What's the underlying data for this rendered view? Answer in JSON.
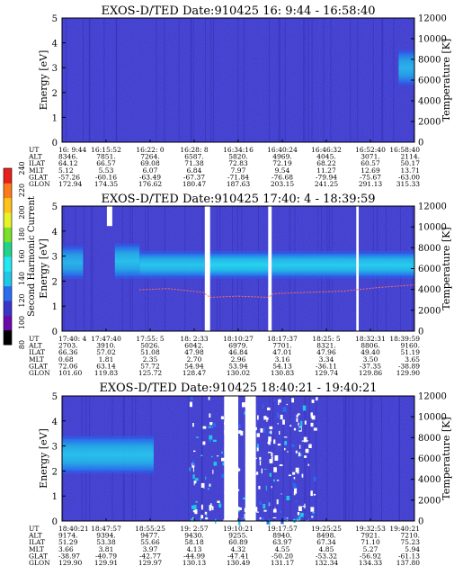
{
  "colorbar": {
    "label": "Second Harmonic Current",
    "ticks": [
      "80",
      "100",
      "120",
      "140",
      "160",
      "180",
      "200",
      "220",
      "240"
    ]
  },
  "chart_data": [
    {
      "type": "heatmap",
      "title": "EXOS-D/TED   Date:910425  16: 9:44 - 16:58:40",
      "ylabel": "Energy [eV]",
      "y2label": "Temperature [K]",
      "ylim": [
        0,
        5
      ],
      "y2lim": [
        0,
        12000
      ],
      "yticks": [
        "0",
        "1",
        "2",
        "3",
        "4",
        "5"
      ],
      "y2ticks": [
        "0",
        "2000",
        "4000",
        "6000",
        "8000",
        "10000",
        "12000"
      ],
      "features": [
        {
          "kind": "band",
          "x_range": [
            0.955,
            1.0
          ],
          "y_range": [
            2.4,
            3.6
          ],
          "level": 150
        }
      ],
      "table": {
        "labels": [
          "UT",
          "ALT",
          "ILAT",
          "MLT",
          "GLAT",
          "GLON"
        ],
        "columns": [
          [
            "16: 9:44",
            "8346.",
            "64.12",
            "5.12",
            "-57.26",
            "172.94"
          ],
          [
            "16:15:52",
            "7851.",
            "66.57",
            "5.53",
            "-60.16",
            "174.35"
          ],
          [
            "16:22: 0",
            "7264.",
            "69.08",
            "6.07",
            "-63.49",
            "176.62"
          ],
          [
            "16:28: 8",
            "6587.",
            "71.38",
            "6.84",
            "-67.37",
            "180.47"
          ],
          [
            "16:34:16",
            "5820.",
            "72.83",
            "7.97",
            "-71.84",
            "187.63"
          ],
          [
            "16:40:24",
            "4969.",
            "72.19",
            "9.54",
            "-76.68",
            "203.15"
          ],
          [
            "16:46:32",
            "4045.",
            "68.22",
            "11.27",
            "-79.94",
            "241.25"
          ],
          [
            "16:52:40",
            "3071.",
            "60.57",
            "12.69",
            "-75.67",
            "291.13"
          ],
          [
            "16:58:40",
            "2114.",
            "50.17",
            "13.71",
            "-63.00",
            "315.33"
          ]
        ]
      }
    },
    {
      "type": "heatmap",
      "title": "EXOS-D/TED   Date:910425  17:40: 4 - 18:39:59",
      "ylabel": "Energy [eV]",
      "y2label": "Temperature [K]",
      "ylim": [
        0,
        5
      ],
      "y2lim": [
        0,
        12000
      ],
      "yticks": [
        "0",
        "1",
        "2",
        "3",
        "4",
        "5"
      ],
      "y2ticks": [
        "0",
        "2000",
        "4000",
        "6000",
        "8000",
        "10000",
        "12000"
      ],
      "features": [
        {
          "kind": "band",
          "x_range": [
            0.0,
            0.06
          ],
          "y_range": [
            2.2,
            3.3
          ],
          "level": 150
        },
        {
          "kind": "band",
          "x_range": [
            0.15,
            0.22
          ],
          "y_range": [
            2.2,
            3.4
          ],
          "level": 160
        },
        {
          "kind": "band",
          "x_range": [
            0.22,
            0.405
          ],
          "y_range": [
            2.2,
            3.1
          ],
          "level": 165
        },
        {
          "kind": "band",
          "x_range": [
            0.42,
            0.585
          ],
          "y_range": [
            2.2,
            3.1
          ],
          "level": 175
        },
        {
          "kind": "band",
          "x_range": [
            0.595,
            1.0
          ],
          "y_range": [
            2.2,
            3.1
          ],
          "level": 170
        },
        {
          "kind": "gap",
          "x_range": [
            0.405,
            0.42
          ]
        },
        {
          "kind": "gap",
          "x_range": [
            0.585,
            0.595
          ]
        },
        {
          "kind": "gap",
          "x_range": [
            0.835,
            0.842
          ]
        },
        {
          "kind": "spike",
          "x": 0.135,
          "y_range": [
            4.2,
            5.0
          ],
          "color": "white"
        }
      ],
      "temperature_trace": [
        [
          0.22,
          1.65
        ],
        [
          0.3,
          1.7
        ],
        [
          0.4,
          1.55
        ],
        [
          0.42,
          1.35
        ],
        [
          0.5,
          1.4
        ],
        [
          0.585,
          1.35
        ],
        [
          0.6,
          1.5
        ],
        [
          0.7,
          1.55
        ],
        [
          0.8,
          1.6
        ],
        [
          0.9,
          1.75
        ],
        [
          1.0,
          1.85
        ]
      ],
      "table": {
        "labels": [
          "UT",
          "ALT",
          "ILAT",
          "MLT",
          "GLAT",
          "GLON"
        ],
        "columns": [
          [
            "17:40: 4",
            "2703.",
            "66.36",
            "0.68",
            "72.06",
            "101.60"
          ],
          [
            "17:47:40",
            "3910.",
            "57.02",
            "1.81",
            "63.14",
            "119.83"
          ],
          [
            "17:55: 5",
            "5026.",
            "51.08",
            "2.35",
            "57.72",
            "125.72"
          ],
          [
            "18: 2:33",
            "6042.",
            "47.98",
            "2.70",
            "54.94",
            "128.47"
          ],
          [
            "18:10:27",
            "6979.",
            "46.84",
            "2.96",
            "53.94",
            "130.02"
          ],
          [
            "18:17:37",
            "7701.",
            "47.01",
            "3.16",
            "54.13",
            "130.83"
          ],
          [
            "18:25: 5",
            "8321.",
            "47.96",
            "3.34",
            "-36.11",
            "129.74"
          ],
          [
            "18:32:31",
            "8806.",
            "49.40",
            "3.50",
            "-37.35",
            "129.86"
          ],
          [
            "18:39:59",
            "9160.",
            "51.19",
            "3.65",
            "-38.89",
            "129.90"
          ]
        ]
      }
    },
    {
      "type": "heatmap",
      "title": "EXOS-D/TED   Date:910425  18:40:21 - 19:40:21",
      "ylabel": "Energy [eV]",
      "y2label": "Temperature [K]",
      "ylim": [
        0,
        5
      ],
      "y2lim": [
        0,
        12000
      ],
      "yticks": [
        "0",
        "1",
        "2",
        "3",
        "4",
        "5"
      ],
      "y2ticks": [
        "0",
        "2000",
        "4000",
        "6000",
        "8000",
        "10000",
        "12000"
      ],
      "features": [
        {
          "kind": "band",
          "x_range": [
            0.0,
            0.26
          ],
          "y_range": [
            2.0,
            3.3
          ],
          "level": 160
        },
        {
          "kind": "gap",
          "x_range": [
            0.46,
            0.5
          ]
        },
        {
          "kind": "gap",
          "x_range": [
            0.52,
            0.55
          ]
        },
        {
          "kind": "noise",
          "x_range": [
            0.36,
            0.72
          ],
          "y_range": [
            0.0,
            5.0
          ]
        }
      ],
      "table": {
        "labels": [
          "UT",
          "ALT",
          "ILAT",
          "MLT",
          "GLAT",
          "GLON"
        ],
        "columns": [
          [
            "18:40:21",
            "9174.",
            "51.29",
            "3.66",
            "-38.97",
            "129.90"
          ],
          [
            "18:47:57",
            "9394.",
            "53.38",
            "3.81",
            "-40.79",
            "129.91"
          ],
          [
            "18:55:25",
            "9477.",
            "55.66",
            "3.97",
            "-42.77",
            "129.97"
          ],
          [
            "19: 2:57",
            "9430.",
            "58.18",
            "4.13",
            "-44.99",
            "130.13"
          ],
          [
            "19:10:21",
            "9255.",
            "60.89",
            "4.32",
            "-47.41",
            "130.49"
          ],
          [
            "19:17:57",
            "8940.",
            "63.97",
            "4.55",
            "-50.20",
            "131.17"
          ],
          [
            "19:25:25",
            "8498.",
            "67.34",
            "4.85",
            "-53.32",
            "132.34"
          ],
          [
            "19:32:53",
            "7921.",
            "71.10",
            "5.27",
            "-56.92",
            "134.33"
          ],
          [
            "19:40:21",
            "7210.",
            "75.23",
            "5.94",
            "-61.13",
            "137.80"
          ]
        ]
      }
    }
  ]
}
